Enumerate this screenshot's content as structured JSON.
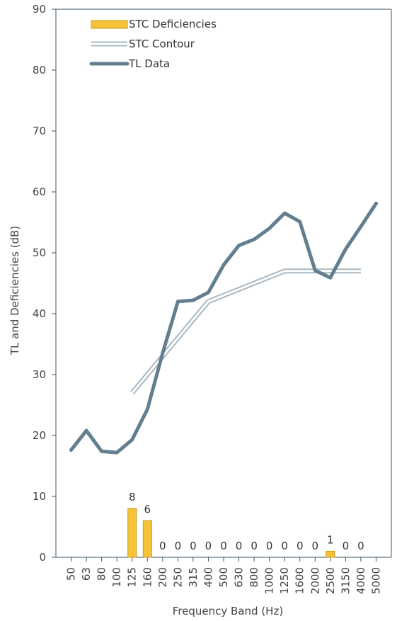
{
  "chart_data": {
    "type": "bar+line",
    "title": "",
    "xlabel": "Frequency Band (Hz)",
    "ylabel": "TL and Deficiencies (dB)",
    "ylim": [
      0,
      90
    ],
    "yticks": [
      "0",
      "10",
      "20",
      "30",
      "40",
      "50",
      "60",
      "70",
      "80",
      "90"
    ],
    "grid": false,
    "legend_position": "top-left",
    "categories": [
      "50",
      "63",
      "80",
      "100",
      "125",
      "160",
      "200",
      "250",
      "315",
      "400",
      "500",
      "630",
      "800",
      "1000",
      "1250",
      "1600",
      "2000",
      "2500",
      "3150",
      "4000",
      "5000"
    ],
    "series": [
      {
        "name": "STC Deficiencies",
        "kind": "bar",
        "color": "#f6c338",
        "values": [
          null,
          null,
          null,
          null,
          8,
          6,
          0,
          0,
          0,
          0,
          0,
          0,
          0,
          0,
          0,
          0,
          0,
          1,
          0,
          0,
          null
        ],
        "labels": [
          "",
          "",
          "",
          "",
          "8",
          "6",
          "0",
          "0",
          "0",
          "0",
          "0",
          "0",
          "0",
          "0",
          "0",
          "0",
          "0",
          "1",
          "0",
          "0",
          ""
        ]
      },
      {
        "name": "STC Contour",
        "kind": "double-line",
        "color": "#a9b8c2",
        "values": [
          null,
          null,
          null,
          null,
          27,
          30,
          33,
          36,
          39,
          42,
          43,
          44,
          45,
          46,
          47,
          47,
          47,
          47,
          47,
          47,
          null
        ]
      },
      {
        "name": "TL Data",
        "kind": "line",
        "color": "#637f8f",
        "values": [
          17.6,
          20.8,
          17.4,
          17.2,
          19.3,
          24.3,
          33.5,
          42,
          42.2,
          43.5,
          48,
          51.2,
          52.2,
          54,
          56.5,
          55.1,
          47.1,
          45.9,
          50.6,
          54.3,
          58.1
        ]
      }
    ]
  }
}
